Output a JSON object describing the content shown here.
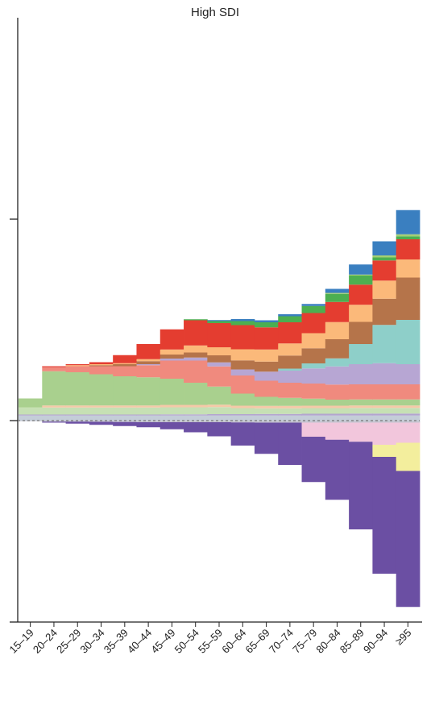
{
  "chart_data": {
    "type": "bar",
    "stacked": true,
    "diverging": true,
    "title": "High SDI",
    "xlabel": "",
    "ylabel": "",
    "ylim": [
      -1,
      2
    ],
    "y_ticks": [
      -1,
      0,
      1
    ],
    "zero_line": "dashed",
    "grid": false,
    "legend": "none",
    "categories": [
      "15–19",
      "20–24",
      "25–29",
      "30–34",
      "35–39",
      "40–44",
      "45–49",
      "50–54",
      "55–59",
      "60–64",
      "65–69",
      "70–74",
      "75–79",
      "80–84",
      "85–89",
      "90–94",
      "≥95"
    ],
    "positive_series": [
      {
        "color": "#c4cdd8",
        "values": [
          0.025,
          0.025,
          0.025,
          0.025,
          0.025,
          0.025,
          0.025,
          0.025,
          0.025,
          0.025,
          0.025,
          0.025,
          0.025,
          0.025,
          0.025,
          0.025,
          0.025
        ]
      },
      {
        "color": "#b3a5cf",
        "values": [
          0.005,
          0.005,
          0.005,
          0.005,
          0.005,
          0.005,
          0.006,
          0.006,
          0.007,
          0.007,
          0.008,
          0.008,
          0.009,
          0.009,
          0.01,
          0.01,
          0.01
        ]
      },
      {
        "color": "#c6e0b4",
        "values": [
          0.035,
          0.035,
          0.035,
          0.035,
          0.035,
          0.035,
          0.035,
          0.035,
          0.035,
          0.03,
          0.028,
          0.028,
          0.028,
          0.028,
          0.028,
          0.028,
          0.028
        ]
      },
      {
        "color": "#f5c9a8",
        "values": [
          0.0,
          0.01,
          0.01,
          0.01,
          0.01,
          0.01,
          0.012,
          0.012,
          0.012,
          0.012,
          0.012,
          0.012,
          0.012,
          0.012,
          0.012,
          0.012,
          0.012
        ]
      },
      {
        "color": "#a9d08e",
        "values": [
          0.045,
          0.17,
          0.165,
          0.155,
          0.145,
          0.14,
          0.13,
          0.11,
          0.09,
          0.06,
          0.045,
          0.04,
          0.035,
          0.03,
          0.03,
          0.03,
          0.03
        ]
      },
      {
        "color": "#f08a7e",
        "values": [
          0.0,
          0.02,
          0.03,
          0.04,
          0.05,
          0.06,
          0.09,
          0.11,
          0.1,
          0.09,
          0.08,
          0.075,
          0.075,
          0.075,
          0.075,
          0.075,
          0.075
        ]
      },
      {
        "color": "#b7a6d3",
        "values": [
          0.0,
          0.0,
          0.0,
          0.0,
          0.0,
          0.005,
          0.01,
          0.015,
          0.02,
          0.03,
          0.045,
          0.06,
          0.075,
          0.09,
          0.1,
          0.105,
          0.1
        ]
      },
      {
        "color": "#8ecfc9",
        "values": [
          0.0,
          0.0,
          0.0,
          0.0,
          0.0,
          0.0,
          0.0,
          0.0,
          0.0,
          0.0,
          0.0,
          0.01,
          0.025,
          0.04,
          0.1,
          0.19,
          0.22
        ]
      },
      {
        "color": "#b5744a",
        "values": [
          0.0,
          0.0,
          0.0,
          0.005,
          0.01,
          0.015,
          0.02,
          0.025,
          0.035,
          0.045,
          0.05,
          0.065,
          0.075,
          0.095,
          0.11,
          0.13,
          0.21
        ]
      },
      {
        "color": "#fbb97a",
        "values": [
          0.0,
          0.0,
          0.005,
          0.005,
          0.005,
          0.01,
          0.025,
          0.035,
          0.04,
          0.055,
          0.06,
          0.06,
          0.075,
          0.085,
          0.085,
          0.09,
          0.09
        ]
      },
      {
        "color": "#e43d30",
        "values": [
          0.0,
          0.005,
          0.005,
          0.01,
          0.04,
          0.075,
          0.1,
          0.125,
          0.12,
          0.12,
          0.11,
          0.105,
          0.1,
          0.1,
          0.1,
          0.1,
          0.1
        ]
      },
      {
        "color": "#4caf50",
        "values": [
          0.0,
          0.0,
          0.0,
          0.0,
          0.0,
          0.0,
          0.0,
          0.005,
          0.01,
          0.02,
          0.025,
          0.03,
          0.035,
          0.04,
          0.045,
          0.015,
          0.015
        ]
      },
      {
        "color": "#a3cf73",
        "values": [
          0.0,
          0.0,
          0.0,
          0.0,
          0.0,
          0.0,
          0.0,
          0.0,
          0.0,
          0.0,
          0.0,
          0.0,
          0.0,
          0.005,
          0.005,
          0.01,
          0.01
        ]
      },
      {
        "color": "#3a7fc0",
        "values": [
          0.0,
          0.0,
          0.0,
          0.0,
          0.0,
          0.0,
          0.0,
          0.0,
          0.005,
          0.01,
          0.01,
          0.01,
          0.01,
          0.02,
          0.05,
          0.07,
          0.12
        ]
      }
    ],
    "negative_series": [
      {
        "color": "#c6c6d2",
        "values": [
          0.003,
          0.005,
          0.005,
          0.006,
          0.007,
          0.008,
          0.008,
          0.008,
          0.008,
          0.009,
          0.01,
          0.01,
          0.01,
          0.01,
          0.01,
          0.01,
          0.01
        ]
      },
      {
        "color": "#f2c6dc",
        "values": [
          0.0,
          0.0,
          0.0,
          0.0,
          0.0,
          0.0,
          0.0,
          0.0,
          0.0,
          0.0,
          0.0,
          0.0,
          0.07,
          0.085,
          0.095,
          0.11,
          0.1
        ]
      },
      {
        "color": "#f3ee9d",
        "values": [
          0.0,
          0.0,
          0.0,
          0.0,
          0.0,
          0.0,
          0.0,
          0.0,
          0.0,
          0.0,
          0.0,
          0.0,
          0.0,
          0.0,
          0.0,
          0.06,
          0.14
        ]
      },
      {
        "color": "#6b4fa3",
        "values": [
          0.0,
          0.005,
          0.01,
          0.015,
          0.02,
          0.025,
          0.035,
          0.05,
          0.07,
          0.115,
          0.155,
          0.21,
          0.225,
          0.298,
          0.435,
          0.58,
          0.675
        ]
      }
    ]
  }
}
